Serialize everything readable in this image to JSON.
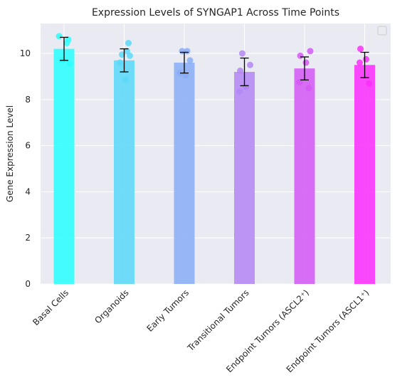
{
  "chart_data": {
    "type": "bar",
    "title": "Expression Levels of SYNGAP1 Across Time Points",
    "xlabel": "",
    "ylabel": "Gene Expression Level",
    "ylim": [
      0,
      11.3
    ],
    "yticks": [
      "0",
      "2",
      "4",
      "6",
      "8",
      "10"
    ],
    "grid": true,
    "legend": "top-right, empty",
    "categories": [
      "Basal Cells",
      "Organoids",
      "Early Tumors",
      "Transitional Tumors",
      "Endpoint Tumors (ASCL2⁺)",
      "Endpoint Tumors (ASCL1⁺)"
    ],
    "values": [
      10.2,
      9.7,
      9.6,
      9.2,
      9.35,
      9.5
    ],
    "errors": [
      0.5,
      0.5,
      0.45,
      0.6,
      0.5,
      0.55
    ],
    "points": [
      [
        10.75,
        10.6,
        10.45,
        9.7,
        9.55
      ],
      [
        10.45,
        10.1,
        9.95,
        9.9,
        9.6,
        8.85
      ],
      [
        10.1,
        10.1,
        9.7,
        9.15,
        9.05
      ],
      [
        10.0,
        9.5,
        9.25,
        8.55,
        8.35
      ],
      [
        10.1,
        9.9,
        9.6,
        8.75,
        8.5
      ],
      [
        10.2,
        9.75,
        9.6,
        8.7
      ]
    ],
    "colors": [
      "#2EFEFE",
      "#5CD9F8",
      "#8AAEF6",
      "#B487F4",
      "#D35BF4",
      "#FA30FC"
    ]
  }
}
